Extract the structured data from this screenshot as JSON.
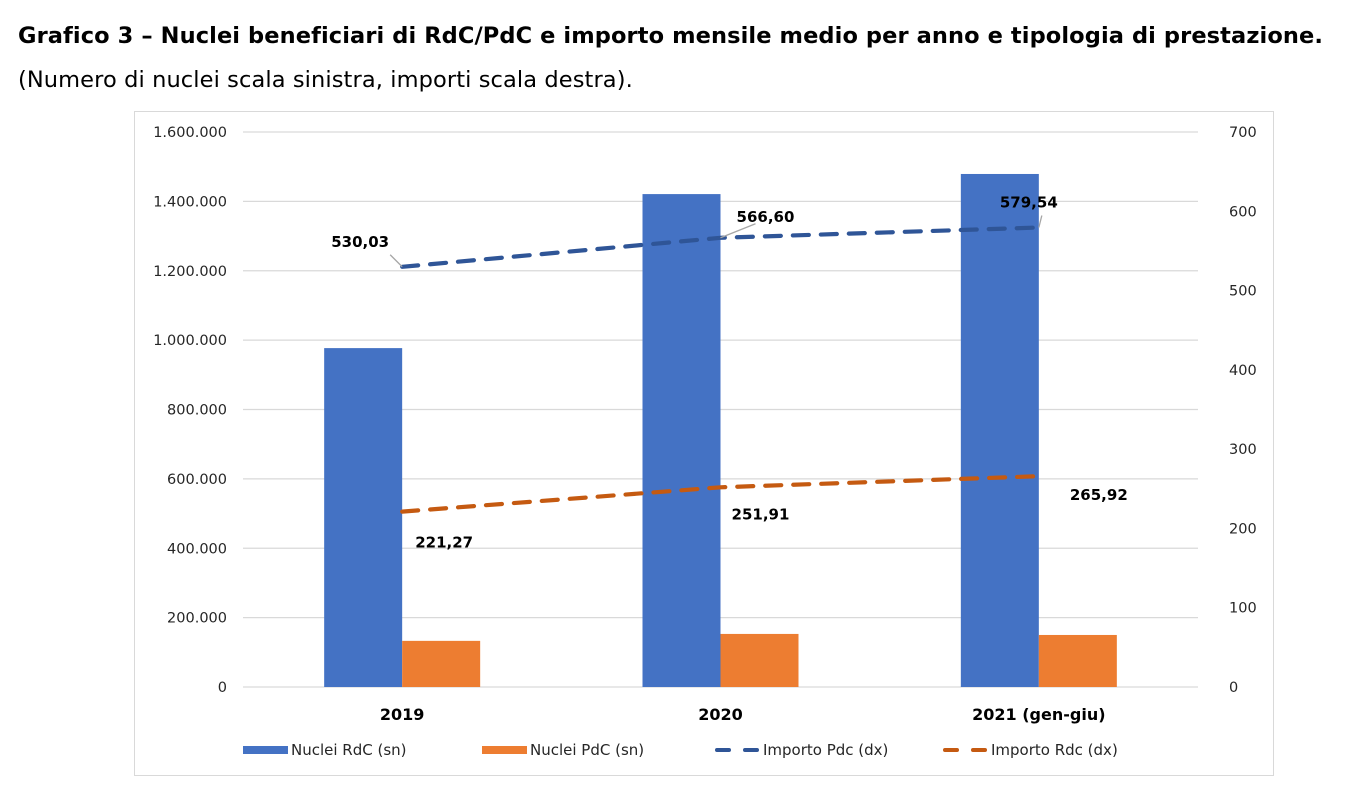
{
  "heading": {
    "bold": "Grafico 3 – Nuclei beneficiari di RdC/PdC e importo mensile medio per anno e tipologia di prestazione",
    "bold_end": ".",
    "normal": " (Numero di nuclei scala sinistra, importi scala destra)."
  },
  "chart_data": {
    "type": "bar",
    "combo": "bar + line (secondary axis)",
    "title": "Nuclei beneficiari di RdC/PdC e importo mensile medio per anno e tipologia di prestazione",
    "categories": [
      "2019",
      "2020",
      "2021 (gen-giu)"
    ],
    "series": [
      {
        "name": "Nuclei RdC (sn)",
        "type": "bar",
        "axis": "left",
        "color": "#4472C4",
        "values": [
          977000,
          1421000,
          1479000
        ]
      },
      {
        "name": "Nuclei PdC (sn)",
        "type": "bar",
        "axis": "left",
        "color": "#ED7D31",
        "values": [
          133000,
          153000,
          150000
        ]
      },
      {
        "name": "Importo Pdc (dx)",
        "type": "line",
        "dashed": true,
        "axis": "right",
        "color": "#2F5597",
        "values": [
          530.03,
          566.6,
          579.54
        ],
        "labels": [
          "530,03",
          "566,60",
          "579,54"
        ]
      },
      {
        "name": "Importo Rdc (dx)",
        "type": "line",
        "dashed": true,
        "axis": "right",
        "color": "#C55A11",
        "values": [
          221.27,
          251.91,
          265.92
        ],
        "labels": [
          "221,27",
          "251,91",
          "265,92"
        ]
      }
    ],
    "left_axis": {
      "ylim": [
        0,
        1600000
      ],
      "ticks": [
        0,
        200000,
        400000,
        600000,
        800000,
        1000000,
        1200000,
        1400000,
        1600000
      ],
      "tick_labels": [
        "0",
        "200.000",
        "400.000",
        "600.000",
        "800.000",
        "1.000.000",
        "1.200.000",
        "1.400.000",
        "1.600.000"
      ]
    },
    "right_axis": {
      "ylim": [
        0,
        700
      ],
      "ticks": [
        0,
        100,
        200,
        300,
        400,
        500,
        600,
        700
      ],
      "tick_labels": [
        "0",
        "100",
        "200",
        "300",
        "400",
        "500",
        "600",
        "700"
      ]
    },
    "xlabel": "",
    "ylabel": "",
    "grid": true,
    "legend_position": "bottom"
  }
}
